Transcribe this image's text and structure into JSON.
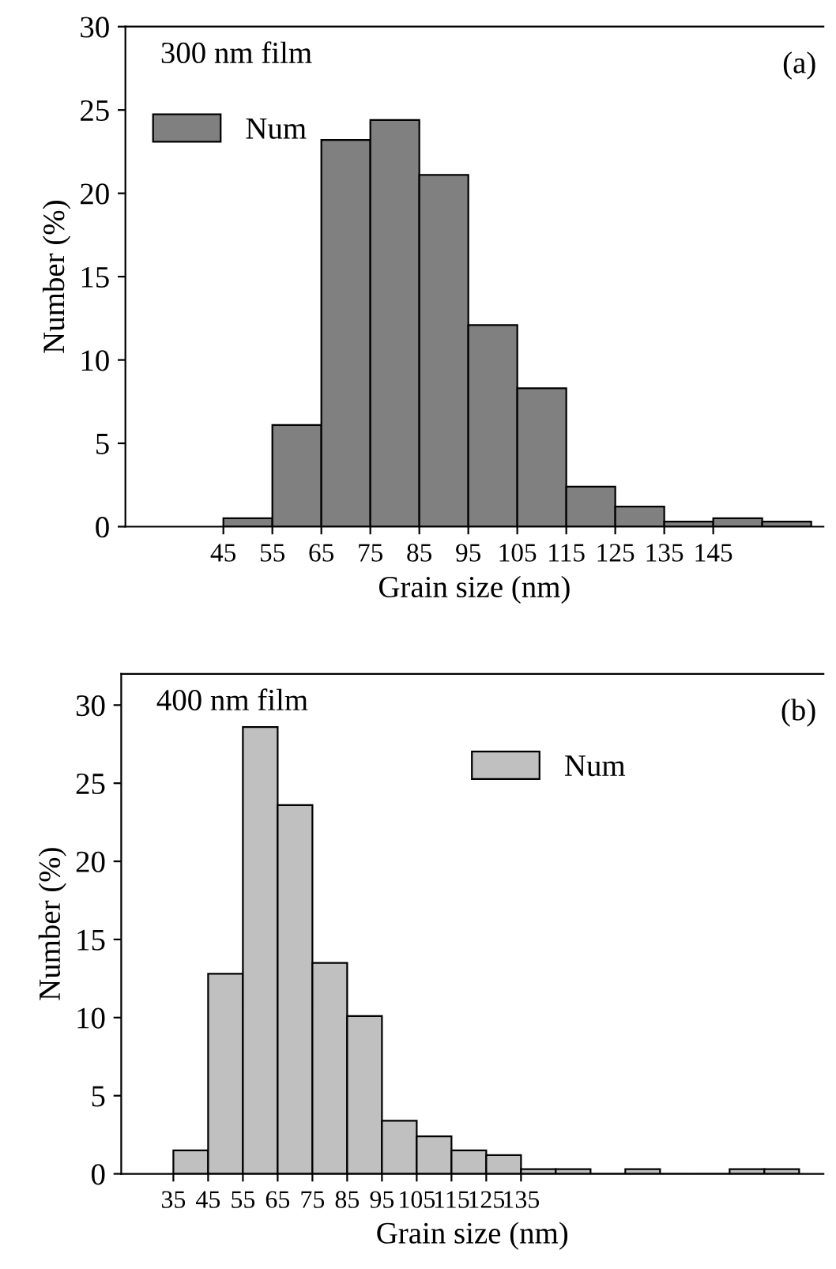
{
  "chart_data": [
    {
      "type": "histogram",
      "xlabel": "Grain size (nm)",
      "ylabel": "Number (%)",
      "annotations": [
        "300 nm film",
        "(a)"
      ],
      "bins": [
        45,
        55,
        65,
        75,
        85,
        95,
        105,
        115,
        125,
        135,
        145,
        155,
        165
      ],
      "series": [
        {
          "name": "Num",
          "color": "#808080",
          "values": [
            0.5,
            6.1,
            23.2,
            24.4,
            21.1,
            12.1,
            8.3,
            2.4,
            1.2,
            0.3,
            0.5,
            0.3
          ]
        }
      ],
      "xlim": [
        25,
        167.5
      ],
      "xticks": [
        45,
        55,
        65,
        75,
        85,
        95,
        105,
        115,
        125,
        135,
        145
      ],
      "ylim": [
        0,
        30
      ],
      "yticks": [
        0,
        5,
        10,
        15,
        20,
        25,
        30
      ],
      "legend": "top left",
      "grid": false
    },
    {
      "type": "histogram",
      "xlabel": "Grain size (nm)",
      "ylabel": "Number (%)",
      "annotations": [
        "400 nm film",
        "(b)"
      ],
      "bins": [
        35,
        45,
        55,
        65,
        75,
        85,
        95,
        105,
        115,
        125,
        135,
        145,
        155,
        165,
        175,
        185,
        195,
        205,
        215
      ],
      "series": [
        {
          "name": "Num",
          "color": "#c0c0c0",
          "values": [
            1.5,
            12.8,
            28.6,
            23.6,
            13.5,
            10.1,
            3.4,
            2.4,
            1.5,
            1.2,
            0.3,
            0.3,
            0,
            0.3,
            0,
            0,
            0.3,
            0.3
          ]
        }
      ],
      "xlim": [
        20,
        222
      ],
      "xticks": [
        35,
        45,
        55,
        65,
        75,
        85,
        95,
        105,
        115,
        125,
        135
      ],
      "ylim": [
        0,
        32
      ],
      "yticks": [
        0,
        5,
        10,
        15,
        20,
        25,
        30
      ],
      "legend": "top",
      "grid": false
    }
  ]
}
